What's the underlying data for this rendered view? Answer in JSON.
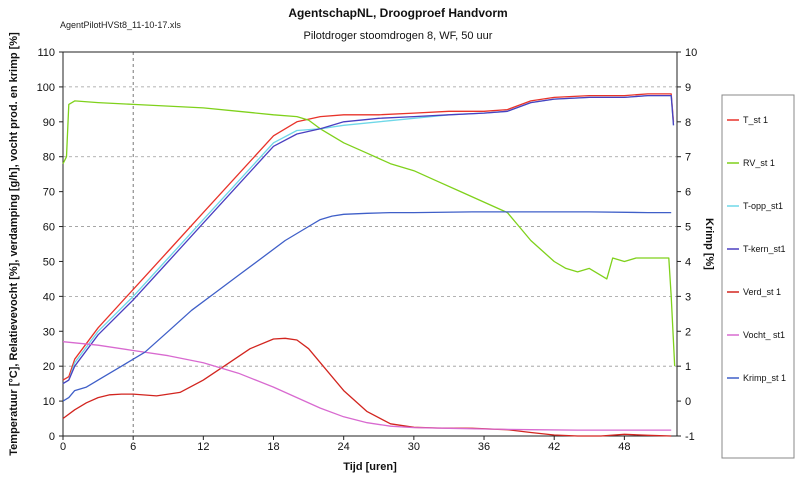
{
  "header": {
    "filename": "AgentPilotHVSt8_11-10-17.xls",
    "title": "AgentschapNL, Droogproef Handvorm",
    "subtitle": "Pilotdroger stoomdrogen 8, WF, 50 uur"
  },
  "chart_data": {
    "type": "line",
    "title": "AgentschapNL, Droogproef Handvorm",
    "subtitle": "Pilotdroger stoomdrogen 8, WF, 50 uur",
    "xlabel": "Tijd [uren]",
    "ylabel": "Temperatuur [°C], Relatievevocht [%], verdamping [g/h], vocht prod. en krimp [%]",
    "y2label": "Krimp [%]",
    "xlim": [
      0,
      52.5
    ],
    "ylim": [
      0,
      110
    ],
    "y2lim": [
      -1,
      10
    ],
    "xticks": [
      0,
      6,
      12,
      18,
      24,
      30,
      36,
      42,
      48
    ],
    "yticks": [
      0,
      10,
      20,
      30,
      40,
      50,
      60,
      70,
      80,
      90,
      100,
      110
    ],
    "y2ticks": [
      -1,
      0,
      1,
      2,
      3,
      4,
      5,
      6,
      7,
      8,
      9,
      10
    ],
    "grid": true,
    "legend_position": "right",
    "series": [
      {
        "name": "T_st 1",
        "axis": "left",
        "color": "#e8332a",
        "x": [
          0,
          0.5,
          1,
          3,
          6,
          9,
          12,
          15,
          18,
          20,
          22,
          24,
          27,
          30,
          33,
          36,
          38,
          40,
          42,
          45,
          48,
          50,
          51.5,
          52,
          52.2
        ],
        "y": [
          16,
          17,
          22,
          31,
          42,
          53,
          64,
          75,
          86,
          90,
          91.5,
          92,
          92,
          92.5,
          93,
          93,
          93.5,
          96,
          97,
          97.5,
          97.5,
          98,
          98,
          98,
          90
        ]
      },
      {
        "name": "RV_st 1",
        "axis": "left",
        "color": "#7fd11b",
        "x": [
          0,
          0.3,
          0.5,
          1,
          3,
          6,
          9,
          12,
          15,
          18,
          20,
          21,
          22,
          23,
          24,
          26,
          28,
          30,
          32,
          34,
          36,
          38,
          39,
          40,
          41,
          42,
          43,
          44,
          45,
          46,
          46.5,
          47,
          48,
          49,
          50,
          51,
          51.8,
          52,
          52.3
        ],
        "y": [
          78,
          80,
          95,
          96,
          95.5,
          95,
          94.5,
          94,
          93,
          92,
          91.5,
          90.5,
          88,
          86,
          84,
          81,
          78,
          76,
          73,
          70,
          67,
          64,
          60,
          56,
          53,
          50,
          48,
          47,
          48,
          46,
          45,
          51,
          50,
          51,
          51,
          51,
          51,
          40,
          20
        ]
      },
      {
        "name": "T-opp_st1",
        "axis": "left",
        "color": "#6fd8e8",
        "x": [
          0,
          0.5,
          1,
          3,
          6,
          9,
          12,
          15,
          18,
          20,
          22,
          24,
          27,
          30,
          33,
          36,
          38,
          40,
          42,
          45,
          48,
          50,
          51.5,
          52,
          52.2
        ],
        "y": [
          15,
          16,
          21,
          30,
          40,
          51,
          62,
          73,
          84,
          87.5,
          88,
          89,
          90,
          91,
          92,
          92.5,
          93,
          95.5,
          96.5,
          97,
          97,
          97.5,
          97.5,
          97.5,
          89
        ]
      },
      {
        "name": "T-kern_st1",
        "axis": "left",
        "color": "#4a3fc0",
        "x": [
          0,
          0.5,
          1,
          3,
          6,
          9,
          12,
          15,
          18,
          20,
          22,
          24,
          27,
          30,
          33,
          36,
          38,
          40,
          42,
          45,
          48,
          50,
          51.5,
          52,
          52.2
        ],
        "y": [
          15,
          16,
          20,
          29,
          39,
          50,
          61,
          72,
          83,
          86.5,
          88,
          90,
          91,
          91.5,
          92,
          92.5,
          93,
          95.5,
          96.5,
          97,
          97,
          97.5,
          97.5,
          97.5,
          89
        ]
      },
      {
        "name": "Verd_st 1",
        "axis": "left",
        "color": "#d2251f",
        "x": [
          0,
          1,
          2,
          3,
          4,
          5,
          6,
          8,
          10,
          12,
          14,
          16,
          18,
          19,
          20,
          21,
          22,
          24,
          26,
          28,
          30,
          32,
          35,
          38,
          40,
          42,
          44,
          46,
          48,
          50,
          52
        ],
        "y": [
          5,
          7.5,
          9.5,
          11,
          11.8,
          12,
          12,
          11.5,
          12.5,
          16,
          20.5,
          25,
          27.8,
          28,
          27.5,
          25,
          21,
          13,
          7,
          3.5,
          2.5,
          2.3,
          2.2,
          1.8,
          1,
          0.3,
          0,
          0,
          0.5,
          0.2,
          0
        ]
      },
      {
        "name": "Vocht_ st1",
        "axis": "left",
        "color": "#d86ad0",
        "x": [
          0,
          3,
          6,
          9,
          12,
          15,
          18,
          20,
          22,
          24,
          26,
          28,
          30,
          33,
          36,
          40,
          44,
          48,
          52
        ],
        "y": [
          27,
          26,
          24.5,
          23,
          21,
          18,
          14,
          11,
          8,
          5.5,
          3.8,
          2.8,
          2.4,
          2.2,
          2,
          1.8,
          1.7,
          1.7,
          1.7
        ]
      },
      {
        "name": "Krimp_st 1",
        "axis": "right",
        "color": "#3f5fc8",
        "x": [
          0,
          0.5,
          1,
          2,
          3,
          5,
          7,
          9,
          11,
          13,
          15,
          17,
          19,
          20,
          21,
          22,
          23,
          24,
          26,
          28,
          30,
          35,
          40,
          45,
          50,
          52
        ],
        "y": [
          0,
          0.1,
          0.3,
          0.4,
          0.6,
          1.0,
          1.4,
          2.0,
          2.6,
          3.1,
          3.6,
          4.1,
          4.6,
          4.8,
          5.0,
          5.2,
          5.3,
          5.35,
          5.38,
          5.4,
          5.4,
          5.42,
          5.42,
          5.42,
          5.4,
          5.4
        ]
      }
    ]
  }
}
